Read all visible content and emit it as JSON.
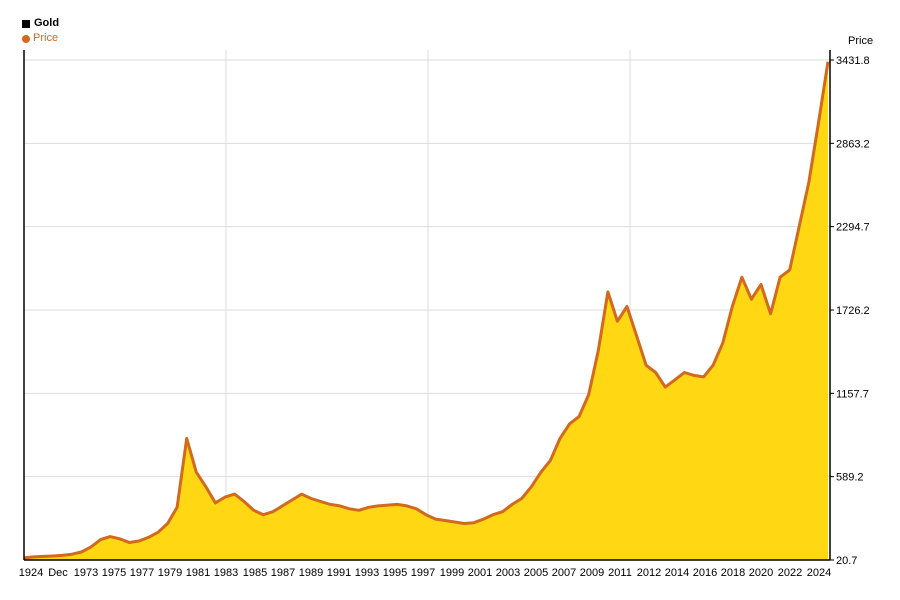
{
  "legend": {
    "title": "Gold",
    "series_label": "Price"
  },
  "chart_data": {
    "type": "area",
    "title": "Gold",
    "ylabel": "Price",
    "y_ticks": [
      "20.7",
      "589.2",
      "1157.7",
      "1726.2",
      "2294.7",
      "2863.2",
      "3431.8"
    ],
    "y_tick_values": [
      20.7,
      589.2,
      1157.7,
      1726.2,
      2294.7,
      2863.2,
      3431.8
    ],
    "ylim": [
      20.7,
      3431.8
    ],
    "x_ticks": [
      "1924",
      "Dec",
      "1973",
      "1975",
      "1977",
      "1979",
      "1981",
      "1983",
      "1985",
      "1987",
      "1989",
      "1991",
      "1993",
      "1995",
      "1997",
      "1999",
      "2001",
      "2003",
      "2005",
      "2007",
      "2009",
      "2011",
      "2012",
      "2014",
      "2016",
      "2018",
      "2020",
      "2022",
      "2024"
    ],
    "grid": true,
    "legend_position": "top-left",
    "colors": {
      "fill": "#ffd712",
      "line": "#d2691e",
      "grid": "#dddddd"
    },
    "series": [
      {
        "name": "Price",
        "values": [
          35,
          42,
          45,
          48,
          52,
          60,
          75,
          110,
          160,
          180,
          165,
          140,
          150,
          175,
          210,
          270,
          380,
          850,
          620,
          520,
          410,
          450,
          470,
          420,
          360,
          330,
          350,
          390,
          430,
          470,
          440,
          420,
          400,
          390,
          370,
          360,
          380,
          390,
          395,
          400,
          390,
          370,
          330,
          300,
          290,
          280,
          270,
          275,
          300,
          330,
          350,
          400,
          440,
          520,
          620,
          700,
          850,
          950,
          1000,
          1150,
          1450,
          1850,
          1650,
          1750,
          1550,
          1350,
          1300,
          1200,
          1250,
          1300,
          1280,
          1270,
          1350,
          1500,
          1750,
          1950,
          1800,
          1900,
          1700,
          1950,
          2000,
          2300,
          2600,
          3000,
          3420
        ]
      }
    ]
  }
}
